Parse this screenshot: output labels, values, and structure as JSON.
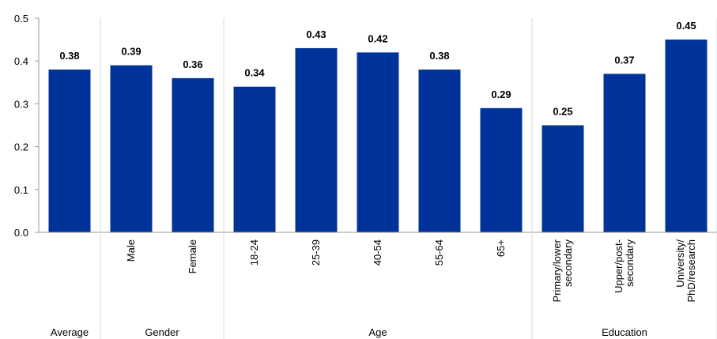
{
  "chart_data": {
    "type": "bar",
    "categories": [
      "",
      "Male",
      "Female",
      "18-24",
      "25-39",
      "40-54",
      "55-64",
      "65+",
      "Primary/lower secondary",
      "Upper/post-secondary",
      "University/ PhD/research"
    ],
    "category_lines": [
      [],
      [
        "Male"
      ],
      [
        "Female"
      ],
      [
        "18-24"
      ],
      [
        "25-39"
      ],
      [
        "40-54"
      ],
      [
        "55-64"
      ],
      [
        "65+"
      ],
      [
        "Primary/lower",
        "secondary"
      ],
      [
        "Upper/post-",
        "secondary"
      ],
      [
        "University/",
        "PhD/research"
      ]
    ],
    "values": [
      0.38,
      0.39,
      0.36,
      0.34,
      0.43,
      0.42,
      0.38,
      0.29,
      0.25,
      0.37,
      0.45
    ],
    "data_labels": [
      "0.38",
      "0.39",
      "0.36",
      "0.34",
      "0.43",
      "0.42",
      "0.38",
      "0.29",
      "0.25",
      "0.37",
      "0.45"
    ],
    "groups": [
      {
        "label": "Average",
        "start": 0,
        "end": 0
      },
      {
        "label": "Gender",
        "start": 1,
        "end": 2
      },
      {
        "label": "Age",
        "start": 3,
        "end": 7
      },
      {
        "label": "Education",
        "start": 8,
        "end": 10
      }
    ],
    "yticks": [
      "0.0",
      "0.1",
      "0.2",
      "0.3",
      "0.4",
      "0.5"
    ],
    "ylim": [
      0,
      0.5
    ],
    "bar_color": "#003399",
    "grid": false,
    "title": "",
    "xlabel": "",
    "ylabel": ""
  }
}
